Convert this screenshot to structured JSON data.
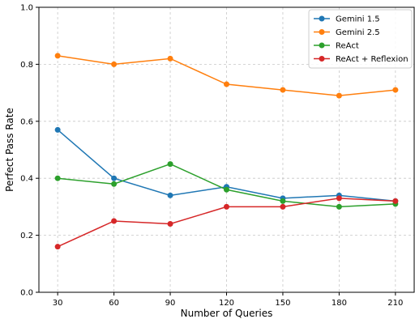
{
  "chart_data": {
    "type": "line",
    "title": "",
    "xlabel": "Number of Queries",
    "ylabel": "Perfect Pass Rate",
    "x": [
      30,
      60,
      90,
      120,
      150,
      180,
      210
    ],
    "x_ticks": [
      "30",
      "60",
      "90",
      "120",
      "150",
      "180",
      "210"
    ],
    "ylim": [
      0.0,
      1.0
    ],
    "y_ticks": [
      "0.0",
      "0.2",
      "0.4",
      "0.6",
      "0.8",
      "1.0"
    ],
    "grid": true,
    "legend_position": "top-right",
    "series": [
      {
        "name": "Gemini 1.5",
        "color": "#1f77b4",
        "values": [
          0.57,
          0.4,
          0.34,
          0.37,
          0.33,
          0.34,
          0.32
        ]
      },
      {
        "name": "Gemini 2.5",
        "color": "#ff7f0e",
        "values": [
          0.83,
          0.8,
          0.82,
          0.73,
          0.71,
          0.69,
          0.71
        ]
      },
      {
        "name": "ReAct",
        "color": "#2ca02c",
        "values": [
          0.4,
          0.38,
          0.45,
          0.36,
          0.32,
          0.3,
          0.31
        ]
      },
      {
        "name": "ReAct + Reflexion",
        "color": "#d62728",
        "values": [
          0.16,
          0.25,
          0.24,
          0.3,
          0.3,
          0.33,
          0.32
        ]
      }
    ]
  }
}
